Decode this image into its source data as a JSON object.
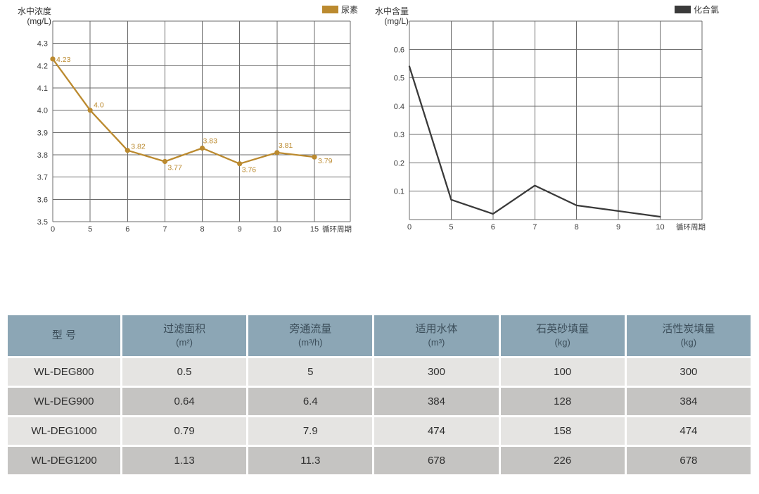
{
  "colors": {
    "urea_line": "#bb8a2f",
    "chlorine_line": "#3a3a3a",
    "grid_line": "#6b6b6b",
    "tick_text": "#3d3d3d",
    "table_header_bg": "#8ca6b5",
    "table_header_text": "#3c4e5a",
    "row_light": "#e5e4e2",
    "row_dark": "#c5c4c2",
    "cell_text": "#2f2f2f"
  },
  "chart_data": [
    {
      "type": "line",
      "series_name": "尿素",
      "ylabel_lines": [
        "水中浓度",
        "(mg/L)"
      ],
      "xlabel": "循环周期",
      "categories": [
        "0",
        "5",
        "6",
        "7",
        "8",
        "9",
        "10",
        "15"
      ],
      "values": [
        4.23,
        4.0,
        3.82,
        3.77,
        3.83,
        3.76,
        3.81,
        3.79
      ],
      "point_labels": [
        "4.23",
        "4.0",
        "3.82",
        "3.77",
        "3.83",
        "3.76",
        "3.81",
        "3.79"
      ],
      "ylim": [
        3.5,
        4.4
      ],
      "y_tick_values": [
        4.3,
        4.2,
        4.1,
        4.0,
        3.9,
        3.8,
        3.7,
        3.6,
        3.5
      ],
      "y_tick_labels": [
        "4.3",
        "4.2",
        "4.1",
        "4.0",
        "3.9",
        "3.8",
        "3.7",
        "3.6",
        "3.5"
      ],
      "grid": true,
      "markers": true,
      "legend": {
        "label": "尿素",
        "position": "top-right"
      }
    },
    {
      "type": "line",
      "series_name": "化合氯",
      "ylabel_lines": [
        "水中含量",
        "(mg/L)"
      ],
      "xlabel": "循环周期",
      "categories": [
        "0",
        "5",
        "6",
        "7",
        "8",
        "9",
        "10"
      ],
      "values": [
        0.54,
        0.07,
        0.02,
        0.12,
        0.05,
        0.03,
        0.01
      ],
      "point_labels": [],
      "ylim": [
        0,
        0.7
      ],
      "y_tick_values": [
        0.6,
        0.5,
        0.4,
        0.3,
        0.2,
        0.1
      ],
      "y_tick_labels": [
        "0.6",
        "0.5",
        "0.4",
        "0.3",
        "0.2",
        "0.1"
      ],
      "grid": true,
      "markers": false,
      "legend": {
        "label": "化合氯",
        "position": "top-right"
      }
    }
  ],
  "table": {
    "headers": [
      {
        "title": "型 号",
        "unit": ""
      },
      {
        "title": "过滤面积",
        "unit": "(m²)"
      },
      {
        "title": "旁通流量",
        "unit": "(m³/h)"
      },
      {
        "title": "适用水体",
        "unit": "(m³)"
      },
      {
        "title": "石英砂填量",
        "unit": "(kg)"
      },
      {
        "title": "活性炭填量",
        "unit": "(kg)"
      }
    ],
    "rows": [
      {
        "model": "WL-DEG800",
        "cells": [
          "0.5",
          "5",
          "300",
          "100",
          "300"
        ]
      },
      {
        "model": "WL-DEG900",
        "cells": [
          "0.64",
          "6.4",
          "384",
          "128",
          "384"
        ]
      },
      {
        "model": "WL-DEG1000",
        "cells": [
          "0.79",
          "7.9",
          "474",
          "158",
          "474"
        ]
      },
      {
        "model": "WL-DEG1200",
        "cells": [
          "1.13",
          "11.3",
          "678",
          "226",
          "678"
        ]
      }
    ]
  }
}
